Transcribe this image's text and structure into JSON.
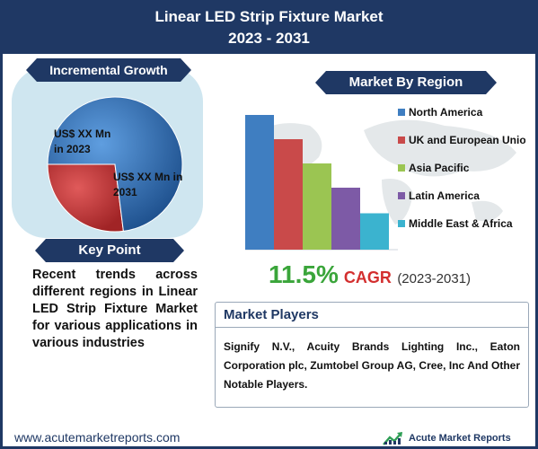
{
  "header": {
    "title_line1": "Linear LED Strip Fixture Market",
    "title_line2": "2023 - 2031"
  },
  "incremental_growth": {
    "heading": "Incremental Growth",
    "label_2023": "US$ XX Mn in 2023",
    "label_2031": "US$ XX Mn in 2031"
  },
  "key_point": {
    "heading": "Key Point",
    "text": "Recent trends across different regions in Linear LED Strip Fixture Market for various applications in various industries"
  },
  "market_by_region": {
    "heading": "Market By Region"
  },
  "cagr": {
    "value": "11.5%",
    "label": "CAGR",
    "period": "(2023-2031)"
  },
  "market_players": {
    "heading": "Market Players",
    "text": "Signify N.V., Acuity Brands Lighting Inc., Eaton Corporation plc, Zumtobel Group AG, Cree, Inc And Other Notable Players."
  },
  "footer": {
    "url": "www.acutemarketreports.com",
    "logo_text": "Acute Market Reports"
  },
  "colors": {
    "navy": "#1f3864",
    "pie_2023": "#c0393b",
    "pie_2031": "#2e6fb5"
  },
  "chart_data": [
    {
      "type": "pie",
      "categories": [
        "2023",
        "2031"
      ],
      "values": [
        27,
        73
      ],
      "labels": [
        "US$ XX Mn in 2023",
        "US$ XX Mn in 2031"
      ],
      "colors": [
        "#c0393b",
        "#2e6fb5"
      ]
    },
    {
      "type": "bar",
      "categories": [
        "North America",
        "UK and European Union",
        "Asia Pacific",
        "Latin America",
        "Middle East & Africa"
      ],
      "values": [
        100,
        82,
        64,
        46,
        27
      ],
      "colors": [
        "#3f7ec1",
        "#c94a4a",
        "#9bc552",
        "#7d5aa6",
        "#3bb3cf"
      ],
      "legend_position": "right",
      "grid": false
    }
  ]
}
